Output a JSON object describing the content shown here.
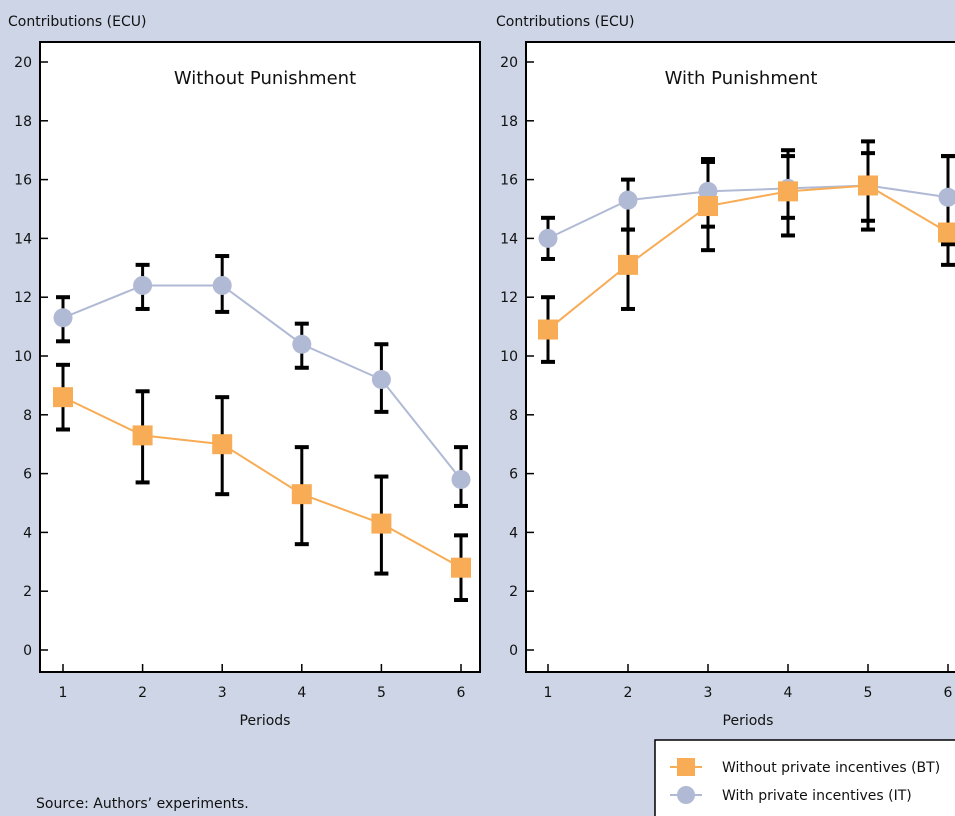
{
  "source": "Source: Authors’ experiments.",
  "legend": {
    "bt_label": "Without private incentives (BT)",
    "it_label": "With private incentives (IT)"
  },
  "colors": {
    "background": "#cdd5e6",
    "bt": "#f7ac55",
    "it": "#b1bad5",
    "error_bar": "#000000",
    "plot_bg": "#ffffff"
  },
  "chart_data": [
    {
      "type": "line",
      "title": "Without Punishment",
      "ylabel": "Contributions (ECU)",
      "xlabel": "Periods",
      "x": [
        1,
        2,
        3,
        4,
        5,
        6
      ],
      "ylim": [
        0,
        20
      ],
      "yticks": [
        0,
        2,
        4,
        6,
        8,
        10,
        12,
        14,
        16,
        18,
        20
      ],
      "series": [
        {
          "name": "Without private incentives (BT)",
          "marker": "square",
          "values": [
            8.6,
            7.3,
            7.0,
            5.3,
            4.3,
            2.8
          ],
          "err_low": [
            7.5,
            5.7,
            5.3,
            3.6,
            2.6,
            1.7
          ],
          "err_high": [
            9.7,
            8.8,
            8.6,
            6.9,
            5.9,
            3.9
          ]
        },
        {
          "name": "With private incentives (IT)",
          "marker": "circle",
          "values": [
            11.3,
            12.4,
            12.4,
            10.4,
            9.2,
            5.8
          ],
          "err_low": [
            10.5,
            11.6,
            11.5,
            9.6,
            8.1,
            4.9
          ],
          "err_high": [
            12.0,
            13.1,
            13.4,
            11.1,
            10.4,
            6.9
          ]
        }
      ]
    },
    {
      "type": "line",
      "title": "With Punishment",
      "ylabel": "Contributions (ECU)",
      "xlabel": "Periods",
      "x": [
        1,
        2,
        3,
        4,
        5,
        6
      ],
      "ylim": [
        0,
        20
      ],
      "yticks": [
        0,
        2,
        4,
        6,
        8,
        10,
        12,
        14,
        16,
        18,
        20
      ],
      "series": [
        {
          "name": "Without private incentives (BT)",
          "marker": "square",
          "values": [
            10.9,
            13.1,
            15.1,
            15.6,
            15.8,
            14.2
          ],
          "err_low": [
            9.8,
            11.6,
            13.6,
            14.1,
            14.3,
            13.1
          ],
          "err_high": [
            12.0,
            14.3,
            16.7,
            17.0,
            17.3,
            16.8
          ]
        },
        {
          "name": "With private incentives (IT)",
          "marker": "circle",
          "values": [
            14.0,
            15.3,
            15.6,
            15.7,
            15.8,
            15.4
          ],
          "err_low": [
            13.3,
            14.3,
            14.4,
            14.7,
            14.6,
            13.8
          ],
          "err_high": [
            14.7,
            16.0,
            16.6,
            16.8,
            16.9,
            16.8
          ]
        }
      ]
    }
  ]
}
